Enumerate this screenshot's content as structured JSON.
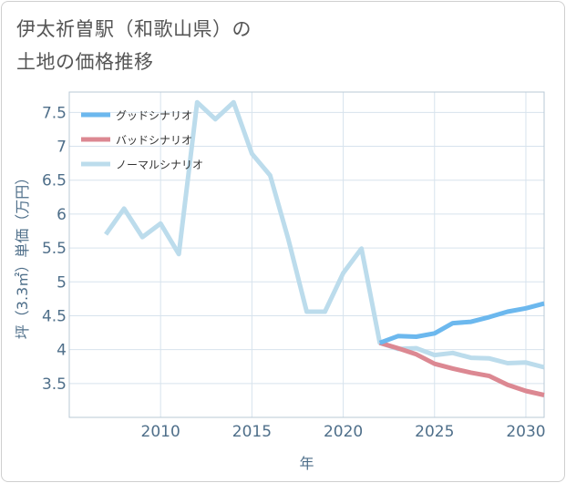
{
  "title": {
    "line1": "伊太祈曽駅（和歌山県）の",
    "line2": "土地の価格推移"
  },
  "colors": {
    "good": "#6cb8ee",
    "bad": "#dc8892",
    "normal": "#bcdcec",
    "grid": "#d7e3ed",
    "axis_text": "#4f6f8a"
  },
  "chart_data": {
    "type": "line",
    "title": "伊太祈曽駅（和歌山県）の土地の価格推移",
    "xlabel": "年",
    "ylabel": "坪（3.3㎡）単価（万円）",
    "xlim": [
      2005,
      2031
    ],
    "ylim": [
      3.0,
      7.8
    ],
    "xticks": [
      2010,
      2015,
      2020,
      2025,
      2030
    ],
    "yticks": [
      3.5,
      4,
      4.5,
      5,
      5.5,
      6,
      6.5,
      7,
      7.5
    ],
    "xtick_labels": [
      "2010",
      "2015",
      "2020",
      "2025",
      "2030"
    ],
    "ytick_labels": [
      "3.5",
      "4",
      "4.5",
      "5",
      "5.5",
      "6",
      "6.5",
      "7",
      "7.5"
    ],
    "grid": true,
    "legend": "top-left",
    "series": [
      {
        "name": "グッドシナリオ",
        "key": "good",
        "x": [
          2022,
          2023,
          2024,
          2025,
          2026,
          2027,
          2028,
          2029,
          2030,
          2031
        ],
        "values": [
          4.1,
          4.2,
          4.19,
          4.24,
          4.39,
          4.41,
          4.48,
          4.56,
          4.61,
          4.68
        ]
      },
      {
        "name": "バッドシナリオ",
        "key": "bad",
        "x": [
          2022,
          2023,
          2024,
          2025,
          2026,
          2027,
          2028,
          2029,
          2030,
          2031
        ],
        "values": [
          4.1,
          4.02,
          3.93,
          3.79,
          3.72,
          3.66,
          3.61,
          3.48,
          3.39,
          3.33
        ]
      },
      {
        "name": "ノーマルシナリオ",
        "key": "normal",
        "x": [
          2007,
          2008,
          2009,
          2010,
          2011,
          2012,
          2013,
          2014,
          2015,
          2016,
          2017,
          2018,
          2019,
          2020,
          2021,
          2022,
          2023,
          2024,
          2025,
          2026,
          2027,
          2028,
          2029,
          2030,
          2031
        ],
        "values": [
          5.7,
          6.08,
          5.66,
          5.86,
          5.41,
          7.65,
          7.4,
          7.65,
          6.89,
          6.57,
          5.62,
          4.56,
          4.56,
          5.13,
          5.49,
          4.1,
          4.01,
          4.02,
          3.92,
          3.95,
          3.88,
          3.87,
          3.8,
          3.81,
          3.74
        ]
      }
    ]
  }
}
